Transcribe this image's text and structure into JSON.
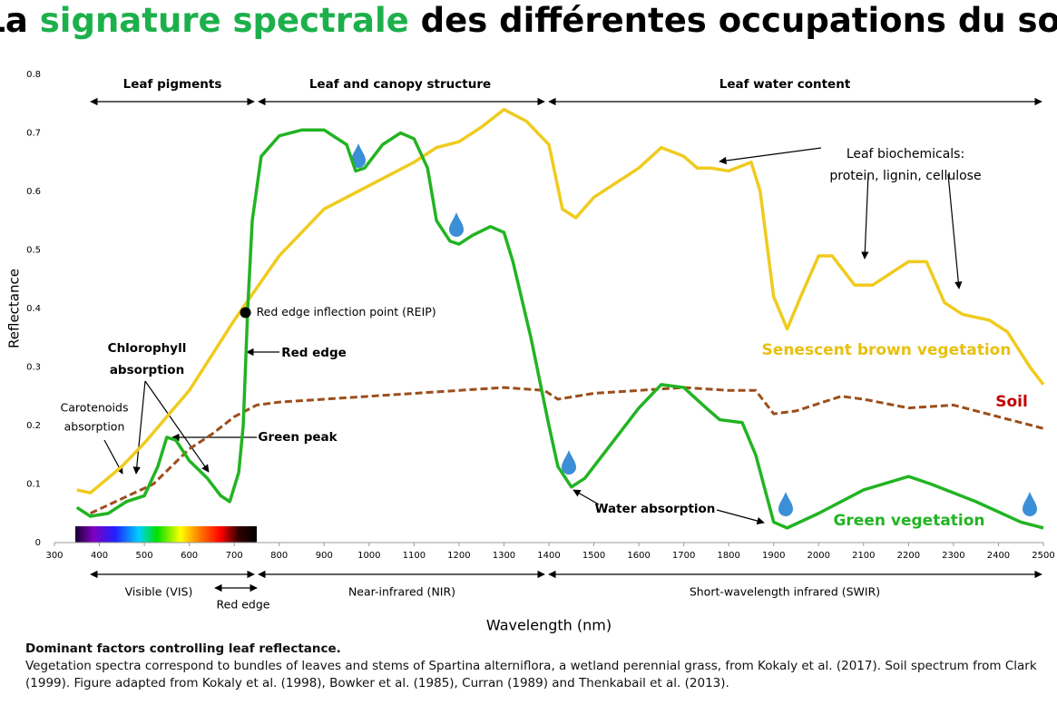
{
  "chart_data": {
    "type": "line",
    "title_parts": [
      "La ",
      "signature spectrale",
      " des différentes occupations du sol"
    ],
    "x_label": "Wavelength (nm)",
    "y_label": "Reflectance",
    "xlim": [
      300,
      2500
    ],
    "xticks": [
      300,
      400,
      500,
      600,
      700,
      800,
      900,
      1000,
      1100,
      1200,
      1300,
      1400,
      1500,
      1600,
      1700,
      1800,
      1900,
      2000,
      2100,
      2200,
      2300,
      2400,
      2500
    ],
    "ylim": [
      0,
      0.8
    ],
    "yticks": [
      0,
      0.1,
      0.2,
      0.3,
      0.4,
      0.5,
      0.6,
      0.7,
      0.8
    ],
    "series": [
      {
        "name": "Senescent brown vegetation",
        "color": "#f0cb1e",
        "x": [
          350,
          380,
          450,
          500,
          600,
          700,
          800,
          900,
          1000,
          1100,
          1150,
          1200,
          1250,
          1300,
          1350,
          1400,
          1430,
          1460,
          1500,
          1600,
          1650,
          1700,
          1730,
          1760,
          1800,
          1850,
          1870,
          1900,
          1930,
          1960,
          2000,
          2030,
          2080,
          2120,
          2200,
          2240,
          2280,
          2320,
          2380,
          2420,
          2470,
          2500
        ],
        "values": [
          0.09,
          0.085,
          0.13,
          0.17,
          0.26,
          0.38,
          0.49,
          0.57,
          0.61,
          0.65,
          0.675,
          0.685,
          0.71,
          0.74,
          0.72,
          0.68,
          0.57,
          0.555,
          0.59,
          0.64,
          0.675,
          0.66,
          0.64,
          0.64,
          0.635,
          0.65,
          0.6,
          0.42,
          0.365,
          0.42,
          0.49,
          0.49,
          0.44,
          0.44,
          0.48,
          0.48,
          0.41,
          0.39,
          0.38,
          0.36,
          0.3,
          0.27
        ]
      },
      {
        "name": "Soil",
        "color": "#9c4e1c",
        "dashed": true,
        "x": [
          380,
          450,
          520,
          600,
          650,
          700,
          750,
          800,
          900,
          1000,
          1100,
          1200,
          1300,
          1390,
          1420,
          1500,
          1600,
          1700,
          1800,
          1860,
          1900,
          1950,
          2050,
          2100,
          2200,
          2300,
          2400,
          2500
        ],
        "values": [
          0.05,
          0.075,
          0.1,
          0.16,
          0.185,
          0.215,
          0.235,
          0.24,
          0.245,
          0.25,
          0.255,
          0.26,
          0.265,
          0.26,
          0.245,
          0.255,
          0.26,
          0.265,
          0.26,
          0.26,
          0.22,
          0.225,
          0.25,
          0.245,
          0.23,
          0.235,
          0.215,
          0.195
        ]
      },
      {
        "name": "Green vegetation",
        "color": "#22b422",
        "x": [
          350,
          380,
          420,
          460,
          500,
          530,
          550,
          570,
          600,
          640,
          670,
          690,
          710,
          720,
          730,
          740,
          760,
          800,
          850,
          900,
          950,
          970,
          990,
          1030,
          1070,
          1100,
          1130,
          1150,
          1180,
          1200,
          1230,
          1270,
          1300,
          1320,
          1360,
          1400,
          1420,
          1450,
          1480,
          1550,
          1600,
          1650,
          1700,
          1750,
          1780,
          1830,
          1860,
          1900,
          1930,
          2000,
          2100,
          2200,
          2250,
          2350,
          2450,
          2500
        ],
        "values": [
          0.06,
          0.045,
          0.05,
          0.07,
          0.08,
          0.13,
          0.18,
          0.175,
          0.14,
          0.11,
          0.08,
          0.07,
          0.12,
          0.2,
          0.4,
          0.55,
          0.66,
          0.695,
          0.705,
          0.705,
          0.68,
          0.635,
          0.64,
          0.68,
          0.7,
          0.69,
          0.64,
          0.55,
          0.515,
          0.51,
          0.525,
          0.54,
          0.53,
          0.48,
          0.35,
          0.2,
          0.13,
          0.095,
          0.11,
          0.18,
          0.23,
          0.27,
          0.265,
          0.23,
          0.21,
          0.205,
          0.15,
          0.035,
          0.025,
          0.05,
          0.09,
          0.113,
          0.1,
          0.07,
          0.035,
          0.025
        ]
      }
    ],
    "markers": [
      {
        "label": "Red edge inflection point (REIP)",
        "x": 725,
        "y": 0.393
      }
    ],
    "annotations": [
      "Leaf pigments",
      "Leaf and canopy structure",
      "Leaf water content",
      "Leaf biochemicals:",
      "protein, lignin, cellulose",
      "Red edge",
      "Chlorophyll",
      "absorption",
      "Carotenoids",
      "absorption",
      "Green peak",
      "Water absorption",
      "Visible (VIS)",
      "Red edge",
      "Near-infrared (NIR)",
      "Short-wavelength infrared (SWIR)"
    ],
    "caption_title": "Dominant factors controlling leaf reflectance.",
    "caption_text": "Vegetation spectra correspond to bundles of leaves and stems of Spartina alterniflora, a wetland perennial grass, from Kokaly et al. (2017). Soil spectrum from Clark (1999). Figure adapted from Kokaly et al. (1998), Bowker et al. (1985), Curran (1989) and Thenkabail et al. (2013)."
  }
}
